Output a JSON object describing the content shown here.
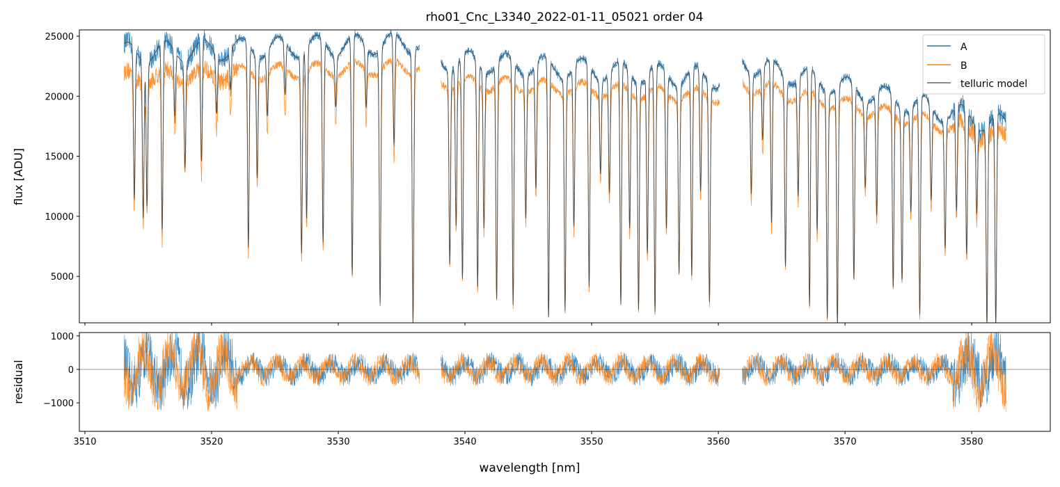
{
  "chart_data": {
    "type": "line",
    "title": "rho01_Cnc_L3340_2022-01-11_05021  order 04",
    "xlabel": "wavelength [nm]",
    "panels": [
      {
        "name": "spectrum",
        "ylabel": "flux [ADU]",
        "xlim": [
          3509.56,
          3586.2
        ],
        "ylim": [
          1130,
          25520
        ],
        "xticks": [
          3510,
          3520,
          3530,
          3540,
          3550,
          3560,
          3570,
          3580
        ],
        "yticks": [
          5000,
          10000,
          15000,
          20000,
          25000
        ],
        "legend": {
          "placement": "top-right",
          "entries": [
            "A",
            "B",
            "telluric model"
          ]
        }
      },
      {
        "name": "residual",
        "ylabel": "residual",
        "xlim": [
          3509.56,
          3586.2
        ],
        "ylim": [
          -1850,
          1100
        ],
        "xticks": [
          3510,
          3520,
          3530,
          3540,
          3550,
          3560,
          3570,
          3580
        ],
        "yticks": [
          -1000,
          0,
          1000
        ]
      }
    ],
    "series": [
      {
        "name": "A",
        "color": "#1f77b4"
      },
      {
        "name": "B",
        "color": "#ff7f0e"
      },
      {
        "name": "telluric model",
        "color": "#404040"
      }
    ],
    "segments": [
      {
        "range": [
          3513.1,
          3536.4
        ],
        "continuum_A": [
          23600,
          24500
        ],
        "continuum_B": [
          21500,
          22500
        ]
      },
      {
        "range": [
          3538.1,
          3560.1
        ],
        "continuum_A": [
          23000,
          21500
        ],
        "continuum_B": [
          21200,
          20000
        ]
      },
      {
        "range": [
          3561.9,
          3582.7
        ],
        "continuum_A": [
          22800,
          17500
        ],
        "continuum_B": [
          21000,
          16500
        ]
      }
    ],
    "absorption_lines": [
      [
        3513.9,
        10500
      ],
      [
        3514.6,
        9500
      ],
      [
        3514.9,
        10500
      ],
      [
        3516.1,
        8000
      ],
      [
        3517.1,
        17000
      ],
      [
        3517.9,
        13500
      ],
      [
        3519.2,
        13000
      ],
      [
        3520.4,
        17500
      ],
      [
        3521.5,
        19000
      ],
      [
        3522.9,
        6700
      ],
      [
        3523.6,
        12500
      ],
      [
        3524.4,
        17000
      ],
      [
        3525.8,
        18000
      ],
      [
        3527.1,
        6500
      ],
      [
        3527.5,
        9000
      ],
      [
        3528.8,
        7000
      ],
      [
        3529.8,
        18000
      ],
      [
        3531.1,
        4500
      ],
      [
        3532.2,
        17500
      ],
      [
        3533.3,
        2500
      ],
      [
        3534.4,
        14000
      ],
      [
        3535.9,
        1000
      ],
      [
        3538.8,
        6000
      ],
      [
        3539.3,
        9000
      ],
      [
        3539.8,
        4500
      ],
      [
        3541.0,
        4000
      ],
      [
        3541.5,
        9000
      ],
      [
        3542.5,
        3000
      ],
      [
        3543.8,
        2500
      ],
      [
        3544.8,
        10000
      ],
      [
        3545.6,
        12000
      ],
      [
        3546.6,
        1500
      ],
      [
        3547.9,
        2200
      ],
      [
        3548.6,
        9000
      ],
      [
        3549.8,
        4000
      ],
      [
        3550.7,
        14000
      ],
      [
        3551.4,
        12000
      ],
      [
        3552.3,
        2500
      ],
      [
        3553.0,
        9000
      ],
      [
        3553.7,
        2300
      ],
      [
        3554.4,
        7000
      ],
      [
        3555.0,
        2000
      ],
      [
        3555.9,
        9000
      ],
      [
        3556.9,
        5500
      ],
      [
        3557.9,
        5000
      ],
      [
        3558.6,
        12000
      ],
      [
        3559.3,
        3000
      ],
      [
        3562.6,
        12000
      ],
      [
        3563.5,
        16000
      ],
      [
        3564.2,
        9000
      ],
      [
        3565.3,
        6000
      ],
      [
        3566.3,
        12000
      ],
      [
        3567.2,
        2500
      ],
      [
        3567.8,
        9000
      ],
      [
        3568.6,
        1600
      ],
      [
        3569.4,
        1000
      ],
      [
        3570.7,
        5000
      ],
      [
        3571.6,
        14000
      ],
      [
        3572.5,
        11000
      ],
      [
        3573.8,
        4500
      ],
      [
        3574.5,
        5500
      ],
      [
        3575.2,
        12000
      ],
      [
        3575.9,
        2000
      ],
      [
        3576.8,
        13000
      ],
      [
        3577.9,
        9000
      ],
      [
        3578.8,
        12000
      ],
      [
        3579.6,
        8000
      ],
      [
        3580.4,
        13000
      ],
      [
        3581.2,
        1500
      ],
      [
        3581.9,
        1100
      ]
    ]
  }
}
